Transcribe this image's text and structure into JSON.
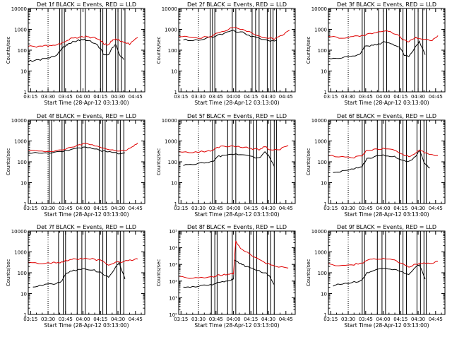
{
  "colors": {
    "events": "#000000",
    "lld": "#e00000",
    "axis": "#000000"
  },
  "chart_data": [
    {
      "type": "line",
      "title": "Det 1f BLACK = Events, RED = LLD",
      "xlabel": "Start Time (28-Apr-12 03:13:00)",
      "ylabel": "Counts/sec",
      "y_scale": "log",
      "xlim": [
        "03:13",
        "04:53"
      ],
      "ylim": [
        1,
        10000
      ],
      "x_ticks": [
        "03:15",
        "03:30",
        "03:45",
        "04:00",
        "04:15",
        "04:30",
        "04:45"
      ],
      "y_ticks": [
        "1",
        "10",
        "100",
        "1000",
        "10000"
      ],
      "series": [
        {
          "color": "black",
          "x": [
            "03:13",
            "03:20",
            "03:27",
            "03:33",
            "03:38",
            "03:42",
            "03:44",
            "03:47",
            "03:51",
            "03:56",
            "04:00",
            "04:05",
            "04:10",
            "04:15",
            "04:18",
            "04:21",
            "04:25",
            "04:28",
            "04:31",
            "04:35"
          ],
          "values": [
            30,
            32,
            38,
            45,
            60,
            130,
            150,
            200,
            250,
            300,
            320,
            300,
            220,
            120,
            60,
            55,
            120,
            200,
            60,
            35
          ]
        },
        {
          "color": "red",
          "x": [
            "03:13",
            "03:20",
            "03:27",
            "03:33",
            "03:38",
            "03:42",
            "03:47",
            "03:51",
            "03:56",
            "04:00",
            "04:05",
            "04:10",
            "04:15",
            "04:18",
            "04:21",
            "04:25",
            "04:28",
            "04:31",
            "04:35",
            "04:40",
            "04:47"
          ],
          "values": [
            160,
            150,
            160,
            170,
            180,
            220,
            300,
            380,
            420,
            450,
            430,
            380,
            300,
            200,
            180,
            280,
            350,
            300,
            250,
            200,
            400
          ]
        }
      ]
    },
    {
      "type": "line",
      "title": "Det 2f BLACK = Events, RED = LLD",
      "xlabel": "Start Time (28-Apr-12 03:13:00)",
      "ylabel": "Counts/sec",
      "y_scale": "log",
      "xlim": [
        "03:13",
        "04:53"
      ],
      "ylim": [
        1,
        10000
      ],
      "x_ticks": [
        "03:15",
        "03:30",
        "03:45",
        "04:00",
        "04:15",
        "04:30",
        "04:45"
      ],
      "y_ticks": [
        "1",
        "10",
        "100",
        "1000",
        "10000"
      ],
      "series": [
        {
          "color": "black",
          "x": [
            "03:17",
            "03:25",
            "03:35",
            "03:45",
            "03:52",
            "04:00",
            "04:08",
            "04:15",
            "04:22",
            "04:30",
            "04:37"
          ],
          "values": [
            320,
            300,
            350,
            480,
            650,
            850,
            700,
            480,
            350,
            280,
            300
          ]
        },
        {
          "color": "red",
          "x": [
            "03:13",
            "03:20",
            "03:30",
            "03:40",
            "03:50",
            "04:00",
            "04:08",
            "04:15",
            "04:25",
            "04:35",
            "04:42",
            "04:48"
          ],
          "values": [
            500,
            420,
            380,
            450,
            800,
            1200,
            1000,
            700,
            420,
            360,
            500,
            900
          ]
        }
      ]
    },
    {
      "type": "line",
      "title": "Det 3f BLACK = Events, RED = LLD",
      "xlabel": "Start Time (28-Apr-12 03:13:00)",
      "ylabel": "Counts/sec",
      "y_scale": "log",
      "xlim": [
        "03:13",
        "04:53"
      ],
      "ylim": [
        1,
        10000
      ],
      "x_ticks": [
        "03:15",
        "03:30",
        "03:45",
        "04:00",
        "04:15",
        "04:30",
        "04:45"
      ],
      "y_ticks": [
        "1",
        "10",
        "100",
        "1000",
        "10000"
      ],
      "series": [
        {
          "color": "black",
          "x": [
            "03:13",
            "03:22",
            "03:32",
            "03:40",
            "03:44",
            "03:50",
            "03:56",
            "04:02",
            "04:08",
            "04:14",
            "04:18",
            "04:22",
            "04:27",
            "04:31",
            "04:36"
          ],
          "values": [
            40,
            42,
            50,
            60,
            150,
            170,
            200,
            250,
            200,
            140,
            60,
            50,
            120,
            250,
            60
          ]
        },
        {
          "color": "red",
          "x": [
            "03:13",
            "03:22",
            "03:32",
            "03:40",
            "03:46",
            "03:52",
            "04:00",
            "04:06",
            "04:12",
            "04:18",
            "04:22",
            "04:28",
            "04:35",
            "04:42",
            "04:47"
          ],
          "values": [
            450,
            400,
            420,
            480,
            550,
            700,
            850,
            800,
            550,
            300,
            250,
            400,
            350,
            300,
            500
          ]
        }
      ]
    },
    {
      "type": "line",
      "title": "Det 4f BLACK = Events, RED = LLD",
      "xlabel": "Start Time (28-Apr-12 03:13:00)",
      "ylabel": "Counts/sec",
      "y_scale": "log",
      "xlim": [
        "03:13",
        "04:53"
      ],
      "ylim": [
        1,
        10000
      ],
      "x_ticks": [
        "03:15",
        "03:30",
        "03:45",
        "04:00",
        "04:15",
        "04:30",
        "04:45"
      ],
      "y_ticks": [
        "1",
        "10",
        "100",
        "1000",
        "10000"
      ],
      "series": [
        {
          "color": "black",
          "x": [
            "03:13",
            "03:25",
            "03:35",
            "03:45",
            "03:55",
            "04:02",
            "04:10",
            "04:18",
            "04:28",
            "04:36"
          ],
          "values": [
            270,
            260,
            270,
            330,
            430,
            500,
            420,
            320,
            260,
            270
          ]
        },
        {
          "color": "red",
          "x": [
            "03:13",
            "03:25",
            "03:35",
            "03:45",
            "03:55",
            "04:02",
            "04:10",
            "04:18",
            "04:28",
            "04:36",
            "04:42",
            "04:47"
          ],
          "values": [
            340,
            320,
            340,
            420,
            600,
            750,
            600,
            420,
            330,
            350,
            500,
            800
          ]
        }
      ]
    },
    {
      "type": "line",
      "title": "Det 5f BLACK = Events, RED = LLD",
      "xlabel": "Start Time (28-Apr-12 03:13:00)",
      "ylabel": "Counts/sec",
      "y_scale": "log",
      "xlim": [
        "03:13",
        "04:53"
      ],
      "ylim": [
        1,
        10000
      ],
      "x_ticks": [
        "03:15",
        "03:30",
        "03:45",
        "04:00",
        "04:15",
        "04:30",
        "04:45"
      ],
      "y_ticks": [
        "1",
        "10",
        "100",
        "1000",
        "10000"
      ],
      "series": [
        {
          "color": "black",
          "x": [
            "03:17",
            "03:25",
            "03:35",
            "03:42",
            "03:46",
            "03:52",
            "04:00",
            "04:08",
            "04:15",
            "04:22",
            "04:27",
            "04:30",
            "04:35"
          ],
          "values": [
            70,
            75,
            90,
            100,
            180,
            200,
            230,
            210,
            180,
            150,
            300,
            200,
            60
          ]
        },
        {
          "color": "red",
          "x": [
            "03:13",
            "03:25",
            "03:35",
            "03:42",
            "03:46",
            "03:52",
            "04:00",
            "04:08",
            "04:15",
            "04:22",
            "04:27",
            "04:32",
            "04:40",
            "04:47"
          ],
          "values": [
            300,
            280,
            320,
            350,
            500,
            550,
            580,
            520,
            430,
            380,
            550,
            350,
            400,
            600
          ]
        }
      ]
    },
    {
      "type": "line",
      "title": "Det 6f BLACK = Events, RED = LLD",
      "xlabel": "Start Time (28-Apr-12 03:13:00)",
      "ylabel": "Counts/sec",
      "y_scale": "log",
      "xlim": [
        "03:13",
        "04:53"
      ],
      "ylim": [
        1,
        10000
      ],
      "x_ticks": [
        "03:15",
        "03:30",
        "03:45",
        "04:00",
        "04:15",
        "04:30",
        "04:45"
      ],
      "y_ticks": [
        "1",
        "10",
        "100",
        "1000",
        "10000"
      ],
      "series": [
        {
          "color": "black",
          "x": [
            "03:17",
            "03:25",
            "03:35",
            "03:42",
            "03:46",
            "03:52",
            "04:00",
            "04:08",
            "04:15",
            "04:22",
            "04:28",
            "04:31",
            "04:35",
            "04:40"
          ],
          "values": [
            30,
            35,
            45,
            60,
            150,
            170,
            200,
            190,
            130,
            100,
            180,
            350,
            100,
            50
          ]
        },
        {
          "color": "red",
          "x": [
            "03:13",
            "03:25",
            "03:35",
            "03:42",
            "03:46",
            "03:52",
            "04:00",
            "04:08",
            "04:15",
            "04:22",
            "04:28",
            "04:31",
            "04:37",
            "04:47"
          ],
          "values": [
            200,
            170,
            160,
            200,
            350,
            400,
            420,
            380,
            250,
            180,
            250,
            380,
            250,
            200
          ]
        }
      ]
    },
    {
      "type": "line",
      "title": "Det 7f BLACK = Events, RED = LLD",
      "xlabel": "Start Time (28-Apr-12 03:13:00)",
      "ylabel": "Counts/sec",
      "y_scale": "log",
      "xlim": [
        "03:13",
        "04:53"
      ],
      "ylim": [
        1,
        10000
      ],
      "x_ticks": [
        "03:15",
        "03:30",
        "03:45",
        "04:00",
        "04:15",
        "04:30",
        "04:45"
      ],
      "y_ticks": [
        "1",
        "10",
        "100",
        "1000",
        "10000"
      ],
      "series": [
        {
          "color": "black",
          "x": [
            "03:17",
            "03:25",
            "03:35",
            "03:42",
            "03:46",
            "03:52",
            "04:00",
            "04:08",
            "04:15",
            "04:22",
            "04:28",
            "04:31",
            "04:36"
          ],
          "values": [
            20,
            25,
            30,
            40,
            100,
            130,
            150,
            140,
            100,
            60,
            180,
            300,
            50
          ]
        },
        {
          "color": "red",
          "x": [
            "03:13",
            "03:25",
            "03:35",
            "03:42",
            "03:46",
            "03:52",
            "04:00",
            "04:08",
            "04:15",
            "04:22",
            "04:28",
            "04:35",
            "04:42",
            "04:47"
          ],
          "values": [
            300,
            280,
            300,
            320,
            400,
            450,
            480,
            450,
            380,
            250,
            300,
            350,
            400,
            450
          ]
        }
      ]
    },
    {
      "type": "line",
      "title": "Det 8f BLACK = Events, RED = LLD",
      "xlabel": "Start Time (28-Apr-12 03:13:00)",
      "ylabel": "Counts/sec",
      "y_scale": "log",
      "xlim": [
        "03:13",
        "04:53"
      ],
      "ylim": [
        1,
        100000
      ],
      "x_ticks": [
        "03:15",
        "03:30",
        "03:45",
        "04:00",
        "04:15",
        "04:30",
        "04:45"
      ],
      "y_ticks": [
        "10^0",
        "10^1",
        "10^2",
        "10^3",
        "10^4",
        "10^5"
      ],
      "series": [
        {
          "color": "black",
          "x": [
            "03:17",
            "03:25",
            "03:35",
            "03:42",
            "03:46",
            "03:52",
            "03:58",
            "04:00",
            "04:01",
            "04:05",
            "04:10",
            "04:15",
            "04:22",
            "04:28",
            "04:31",
            "04:35"
          ],
          "values": [
            40,
            45,
            55,
            60,
            80,
            90,
            120,
            130,
            2000,
            1200,
            800,
            600,
            400,
            300,
            200,
            60
          ]
        },
        {
          "color": "red",
          "x": [
            "03:13",
            "03:25",
            "03:35",
            "03:42",
            "03:46",
            "03:52",
            "03:58",
            "04:00",
            "04:02",
            "04:06",
            "04:12",
            "04:20",
            "04:28",
            "04:36",
            "04:47"
          ],
          "values": [
            180,
            150,
            160,
            170,
            220,
            240,
            260,
            300,
            25000,
            10000,
            5000,
            2500,
            1200,
            800,
            600
          ]
        }
      ]
    },
    {
      "type": "line",
      "title": "Det 9f BLACK = Events, RED = LLD",
      "xlabel": "Start Time (28-Apr-12 03:13:00)",
      "ylabel": "Counts/sec",
      "y_scale": "log",
      "xlim": [
        "03:13",
        "04:53"
      ],
      "ylim": [
        1,
        10000
      ],
      "x_ticks": [
        "03:15",
        "03:30",
        "03:45",
        "04:00",
        "04:15",
        "04:30",
        "04:45"
      ],
      "y_ticks": [
        "1",
        "10",
        "100",
        "1000",
        "10000"
      ],
      "series": [
        {
          "color": "black",
          "x": [
            "03:17",
            "03:25",
            "03:35",
            "03:42",
            "03:46",
            "03:52",
            "04:00",
            "04:08",
            "04:15",
            "04:22",
            "04:28",
            "04:31",
            "04:36"
          ],
          "values": [
            25,
            28,
            35,
            45,
            100,
            130,
            160,
            150,
            120,
            80,
            200,
            250,
            50
          ]
        },
        {
          "color": "red",
          "x": [
            "03:13",
            "03:25",
            "03:35",
            "03:42",
            "03:46",
            "03:52",
            "04:00",
            "04:08",
            "04:15",
            "04:22",
            "04:28",
            "04:35",
            "04:42",
            "04:47"
          ],
          "values": [
            250,
            230,
            250,
            300,
            380,
            450,
            480,
            420,
            300,
            200,
            250,
            300,
            280,
            350
          ]
        }
      ]
    }
  ]
}
